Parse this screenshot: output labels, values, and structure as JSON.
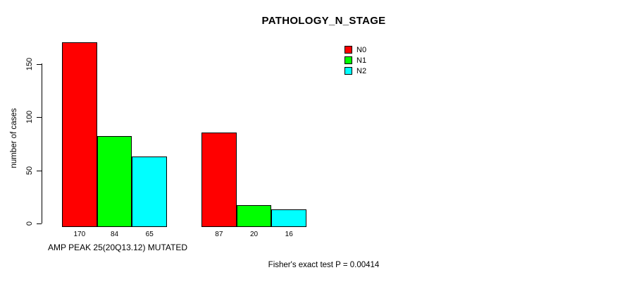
{
  "chart_data": {
    "type": "bar",
    "title": "PATHOLOGY_N_STAGE",
    "ylabel": "number of cases",
    "xlabel": "",
    "yticks": [
      0,
      50,
      100,
      150
    ],
    "ylim": [
      0,
      175
    ],
    "grid": false,
    "legend_position": "top-right-inside",
    "series": [
      {
        "name": "N0",
        "color": "#FF0000",
        "values": [
          170,
          87
        ]
      },
      {
        "name": "N1",
        "color": "#00FF00",
        "values": [
          84,
          20
        ]
      },
      {
        "name": "N2",
        "color": "#00FFFF",
        "values": [
          65,
          16
        ]
      }
    ],
    "groups": [
      {
        "label": "AMP PEAK 25(20Q13.12) MUTATED",
        "values": [
          170,
          84,
          65
        ]
      },
      {
        "label": "",
        "values": [
          87,
          20,
          16
        ]
      }
    ],
    "annotation": "Fisher's exact test P = 0.00414"
  }
}
